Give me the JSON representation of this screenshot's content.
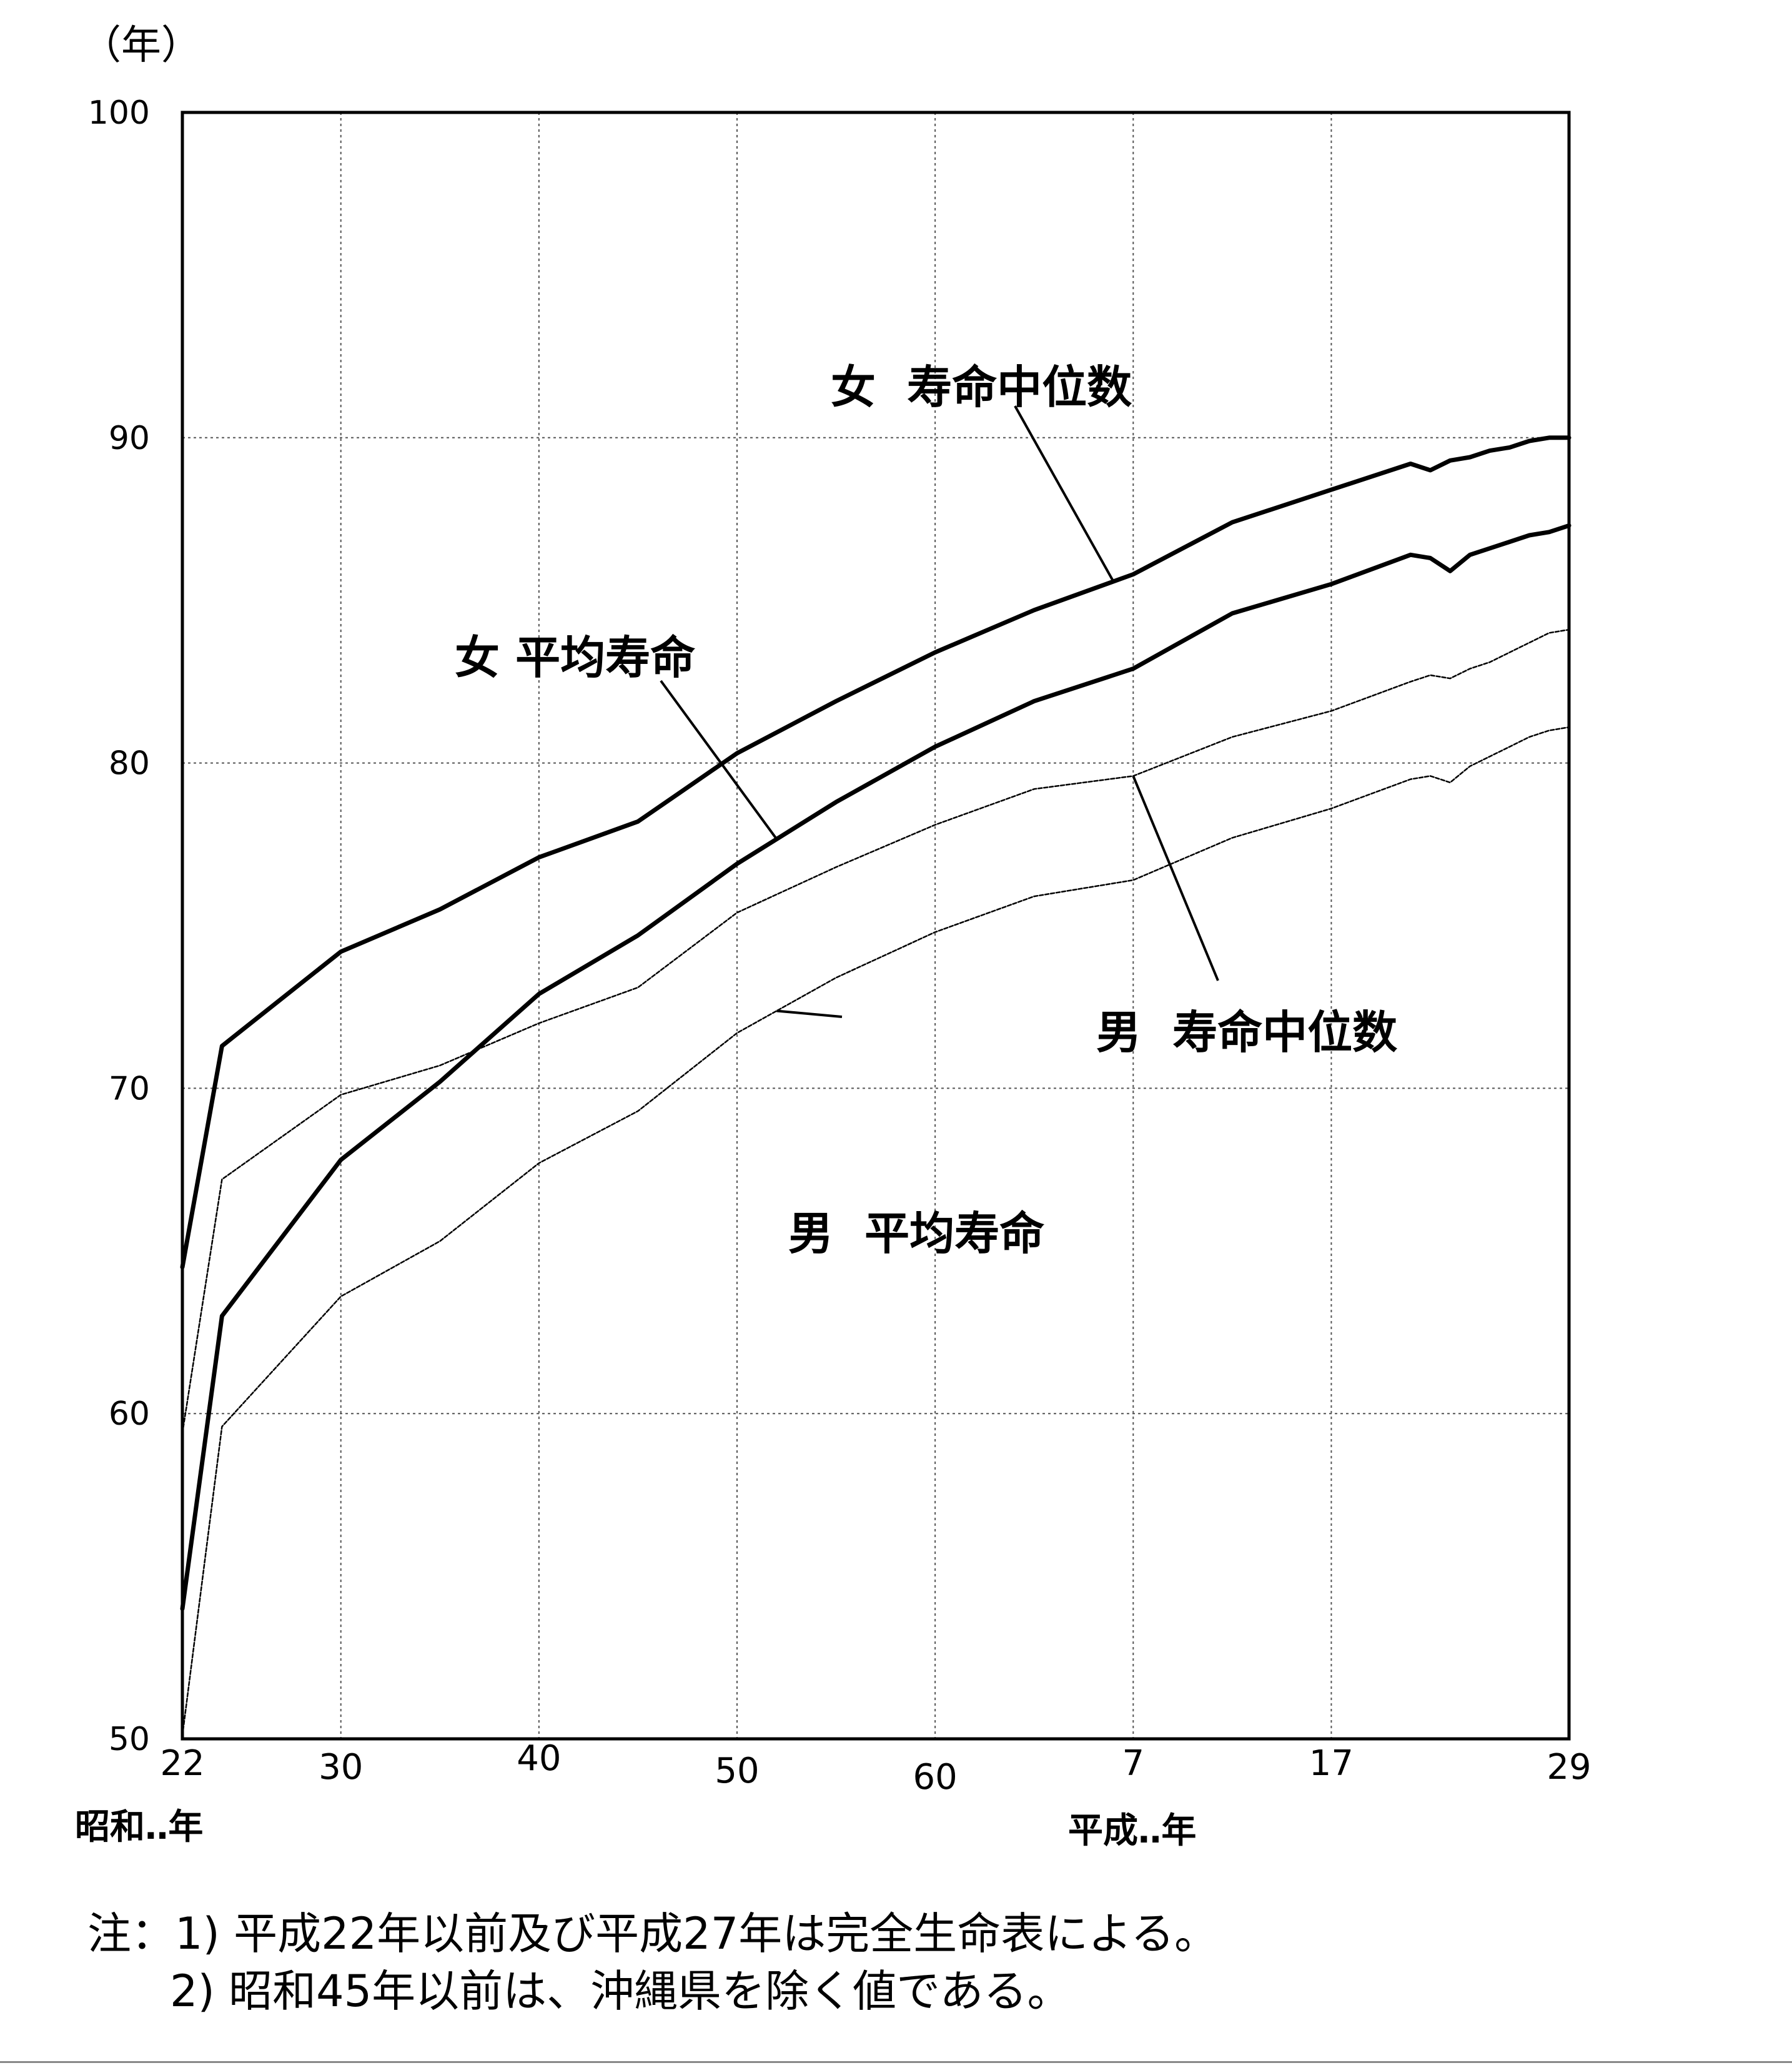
{
  "chart_data": {
    "type": "line",
    "y_unit_label": "（年）",
    "ylim": [
      50,
      100
    ],
    "yticks": [
      "100",
      "90",
      "80",
      "70",
      "60",
      "50"
    ],
    "ytick_values": [
      100,
      90,
      80,
      70,
      60,
      50
    ],
    "x_tick_labels": [
      "22",
      "30",
      "40",
      "50",
      "60",
      "7",
      "17",
      "29"
    ],
    "x_tick_years": [
      1947,
      1955,
      1965,
      1975,
      1985,
      1995,
      2005,
      2017
    ],
    "x_era_labels": {
      "showa": "昭和‥年",
      "heisei": "平成‥年"
    },
    "xlim": [
      1947,
      2017
    ],
    "grid": true,
    "series": [
      {
        "name": "女 寿命中位数",
        "style": "bold",
        "points": [
          [
            1947,
            64.5
          ],
          [
            1949,
            71.3
          ],
          [
            1955,
            74.2
          ],
          [
            1960,
            75.5
          ],
          [
            1965,
            77.1
          ],
          [
            1970,
            78.2
          ],
          [
            1975,
            80.3
          ],
          [
            1980,
            81.9
          ],
          [
            1985,
            83.4
          ],
          [
            1990,
            84.7
          ],
          [
            1995,
            85.8
          ],
          [
            2000,
            87.4
          ],
          [
            2005,
            88.4
          ],
          [
            2009,
            89.2
          ],
          [
            2010,
            89.0
          ],
          [
            2011,
            89.3
          ],
          [
            2012,
            89.4
          ],
          [
            2013,
            89.6
          ],
          [
            2014,
            89.7
          ],
          [
            2015,
            89.9
          ],
          [
            2016,
            90.0
          ],
          [
            2017,
            90.0
          ]
        ]
      },
      {
        "name": "女 平均寿命",
        "style": "bold",
        "points": [
          [
            1947,
            54.0
          ],
          [
            1949,
            63.0
          ],
          [
            1955,
            67.8
          ],
          [
            1960,
            70.2
          ],
          [
            1965,
            72.9
          ],
          [
            1970,
            74.7
          ],
          [
            1975,
            76.9
          ],
          [
            1980,
            78.8
          ],
          [
            1985,
            80.5
          ],
          [
            1990,
            81.9
          ],
          [
            1995,
            82.9
          ],
          [
            2000,
            84.6
          ],
          [
            2005,
            85.5
          ],
          [
            2009,
            86.4
          ],
          [
            2010,
            86.3
          ],
          [
            2011,
            85.9
          ],
          [
            2012,
            86.4
          ],
          [
            2013,
            86.6
          ],
          [
            2014,
            86.8
          ],
          [
            2015,
            87.0
          ],
          [
            2016,
            87.1
          ],
          [
            2017,
            87.3
          ]
        ]
      },
      {
        "name": "男 寿命中位数",
        "style": "thin",
        "points": [
          [
            1947,
            59.4
          ],
          [
            1949,
            67.2
          ],
          [
            1955,
            69.8
          ],
          [
            1960,
            70.7
          ],
          [
            1965,
            72.0
          ],
          [
            1970,
            73.1
          ],
          [
            1975,
            75.4
          ],
          [
            1980,
            76.8
          ],
          [
            1985,
            78.1
          ],
          [
            1990,
            79.2
          ],
          [
            1995,
            79.6
          ],
          [
            2000,
            80.8
          ],
          [
            2005,
            81.6
          ],
          [
            2009,
            82.5
          ],
          [
            2010,
            82.7
          ],
          [
            2011,
            82.6
          ],
          [
            2012,
            82.9
          ],
          [
            2013,
            83.1
          ],
          [
            2014,
            83.4
          ],
          [
            2015,
            83.7
          ],
          [
            2016,
            84.0
          ],
          [
            2017,
            84.1
          ]
        ]
      },
      {
        "name": "男 平均寿命",
        "style": "thin",
        "points": [
          [
            1947,
            50.1
          ],
          [
            1949,
            59.6
          ],
          [
            1955,
            63.6
          ],
          [
            1960,
            65.3
          ],
          [
            1965,
            67.7
          ],
          [
            1970,
            69.3
          ],
          [
            1975,
            71.7
          ],
          [
            1980,
            73.4
          ],
          [
            1985,
            74.8
          ],
          [
            1990,
            75.9
          ],
          [
            1995,
            76.4
          ],
          [
            2000,
            77.7
          ],
          [
            2005,
            78.6
          ],
          [
            2009,
            79.5
          ],
          [
            2010,
            79.6
          ],
          [
            2011,
            79.4
          ],
          [
            2012,
            79.9
          ],
          [
            2013,
            80.2
          ],
          [
            2014,
            80.5
          ],
          [
            2015,
            80.8
          ],
          [
            2016,
            81.0
          ],
          [
            2017,
            81.1
          ]
        ]
      }
    ],
    "annotations": [
      {
        "text": "女  寿命中位数",
        "series": 0,
        "at_year": 1994
      },
      {
        "text": "女 平均寿命",
        "series": 1,
        "at_year": 1977
      },
      {
        "text": "男  寿命中位数",
        "series": 2,
        "at_year": 1995
      },
      {
        "text": "男  平均寿命",
        "series": 3,
        "at_year": 1977
      }
    ]
  },
  "notes": [
    "注：1) 平成22年以前及び平成27年は完全生命表による。",
    "2) 昭和45年以前は、沖縄県を除く値である。"
  ]
}
